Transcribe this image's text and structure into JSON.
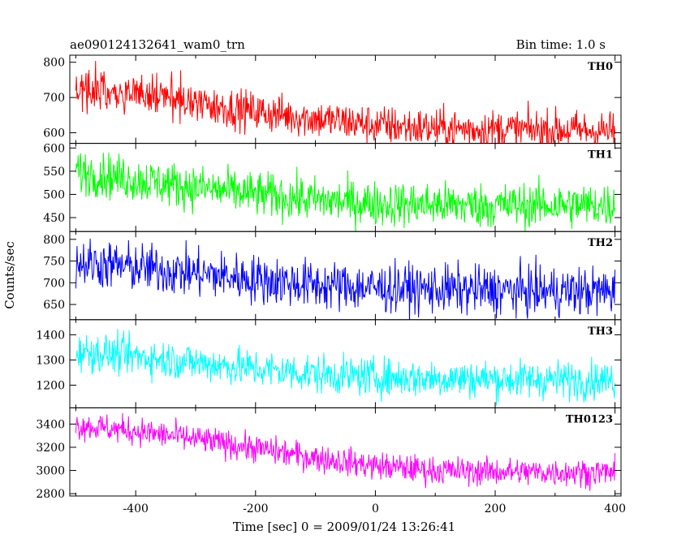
{
  "header": {
    "left_title": "ae090124132641_wam0_trn",
    "right_title": "Bin time: 1.0 s"
  },
  "chart_data": {
    "type": "line",
    "title": "ae090124132641_wam0_trn",
    "subtitle": "Bin time: 1.0 s",
    "xlabel": "Time [sec] 0 = 2009/01/24 13:26:41",
    "ylabel": "Counts/sec",
    "xlim": [
      -510,
      410
    ],
    "xticks": [
      -400,
      -200,
      0,
      200,
      400
    ],
    "x_start": -500,
    "x_end": 400,
    "x_step": 1,
    "grid": false,
    "legend": "none",
    "panels": [
      {
        "name": "TH0",
        "color": "#ff0000",
        "ylim": [
          570,
          820
        ],
        "yticks": [
          600,
          700,
          800
        ],
        "trend": [
          [
            -500,
            730
          ],
          [
            -400,
            712
          ],
          [
            -300,
            685
          ],
          [
            -200,
            660
          ],
          [
            -100,
            640
          ],
          [
            0,
            622
          ],
          [
            100,
            612
          ],
          [
            200,
            610
          ],
          [
            300,
            608
          ],
          [
            400,
            605
          ]
        ],
        "noise": 28
      },
      {
        "name": "TH1",
        "color": "#00ff00",
        "ylim": [
          420,
          610
        ],
        "yticks": [
          450,
          500,
          550,
          600
        ],
        "trend": [
          [
            -500,
            550
          ],
          [
            -400,
            532
          ],
          [
            -300,
            515
          ],
          [
            -200,
            500
          ],
          [
            -100,
            488
          ],
          [
            0,
            480
          ],
          [
            100,
            478
          ],
          [
            200,
            476
          ],
          [
            300,
            477
          ],
          [
            400,
            476
          ]
        ],
        "noise": 24
      },
      {
        "name": "TH2",
        "color": "#0000ff",
        "ylim": [
          615,
          818
        ],
        "yticks": [
          650,
          700,
          750,
          800
        ],
        "trend": [
          [
            -500,
            748
          ],
          [
            -400,
            735
          ],
          [
            -300,
            722
          ],
          [
            -200,
            708
          ],
          [
            -100,
            695
          ],
          [
            0,
            688
          ],
          [
            100,
            685
          ],
          [
            200,
            682
          ],
          [
            300,
            680
          ],
          [
            400,
            680
          ]
        ],
        "noise": 28
      },
      {
        "name": "TH3",
        "color": "#00ffff",
        "ylim": [
          1110,
          1460
        ],
        "yticks": [
          1200,
          1300,
          1400
        ],
        "trend": [
          [
            -500,
            1335
          ],
          [
            -400,
            1315
          ],
          [
            -300,
            1290
          ],
          [
            -200,
            1265
          ],
          [
            -100,
            1245
          ],
          [
            0,
            1232
          ],
          [
            100,
            1228
          ],
          [
            200,
            1224
          ],
          [
            300,
            1222
          ],
          [
            400,
            1220
          ]
        ],
        "noise": 38
      },
      {
        "name": "TH0123",
        "color": "#ff00ff",
        "ylim": [
          2780,
          3540
        ],
        "yticks": [
          2800,
          3000,
          3200,
          3400
        ],
        "trend": [
          [
            -500,
            3390
          ],
          [
            -400,
            3340
          ],
          [
            -300,
            3270
          ],
          [
            -200,
            3190
          ],
          [
            -100,
            3110
          ],
          [
            0,
            3040
          ],
          [
            100,
            3000
          ],
          [
            200,
            2990
          ],
          [
            300,
            2985
          ],
          [
            400,
            2985
          ]
        ],
        "noise": 60
      }
    ]
  }
}
